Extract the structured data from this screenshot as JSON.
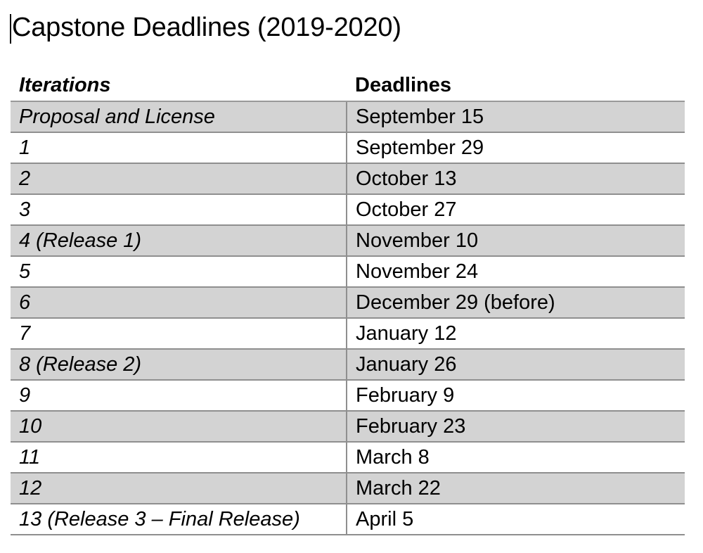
{
  "document": {
    "title": "Capstone Deadlines (2019-2020)"
  },
  "table": {
    "headers": {
      "iterations": "Iterations",
      "deadlines": "Deadlines"
    },
    "rows": [
      {
        "iteration": "Proposal and License",
        "deadline": "September 15"
      },
      {
        "iteration": "1",
        "deadline": "September 29"
      },
      {
        "iteration": "2",
        "deadline": "October 13"
      },
      {
        "iteration": "3",
        "deadline": "October 27"
      },
      {
        "iteration": "4 (Release 1)",
        "deadline": "November 10"
      },
      {
        "iteration": "5",
        "deadline": "November 24"
      },
      {
        "iteration": "6",
        "deadline": "December 29 (before)"
      },
      {
        "iteration": "7",
        "deadline": "January 12"
      },
      {
        "iteration": "8 (Release 2)",
        "deadline": "January 26"
      },
      {
        "iteration": "9",
        "deadline": "February 9"
      },
      {
        "iteration": "10",
        "deadline": "February 23"
      },
      {
        "iteration": "11",
        "deadline": "March 8"
      },
      {
        "iteration": "12",
        "deadline": "March 22"
      },
      {
        "iteration": "13 (Release 3 – Final Release)",
        "deadline": "April 5"
      }
    ]
  },
  "colors": {
    "shaded_row": "#d3d3d3",
    "rule": "#8f8f8f",
    "text": "#000000"
  }
}
